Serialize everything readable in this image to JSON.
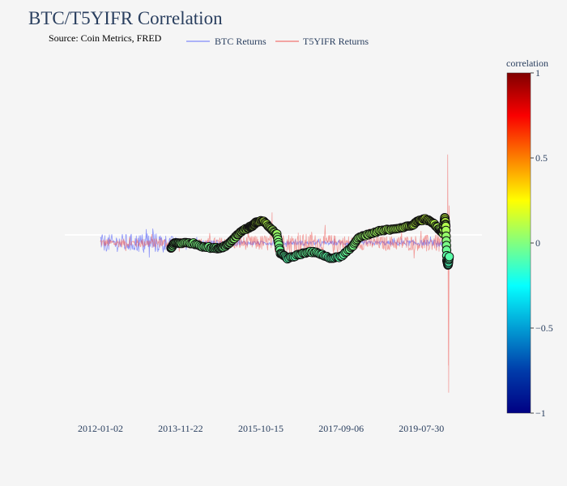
{
  "title": "BTC/T5YIFR Correlation",
  "subtitle": "Source: Coin Metrics, FRED",
  "chart_data": {
    "type": "line",
    "series": [
      {
        "name": "BTC Returns",
        "kind": "line",
        "color": "#636efa"
      },
      {
        "name": "T5YIFR Returns",
        "kind": "line",
        "color": "#ef5350"
      },
      {
        "name": "correlation",
        "kind": "scatter",
        "colorscale": "Jet"
      }
    ],
    "x_tick_labels": [
      "2012-01-02",
      "2013-11-22",
      "2015-10-15",
      "2017-09-06",
      "2019-07-30"
    ],
    "x_range": [
      "2011-03-01",
      "2021-01-01"
    ],
    "y_range": [
      -1.0,
      1.0
    ],
    "grid": false,
    "legend_placement": "top-center",
    "colorbar": {
      "title": "correlation",
      "min": -1,
      "max": 1,
      "tick_labels": [
        "1",
        "0.5",
        "0",
        "−0.5",
        "−1"
      ],
      "tick_values": [
        1,
        0.5,
        0,
        -0.5,
        -1
      ]
    },
    "btc_amplitude_envelope": [
      {
        "x": "2012-01-01",
        "amp": 0.05
      },
      {
        "x": "2013-06-01",
        "amp": 0.06
      },
      {
        "x": "2014-01-01",
        "amp": 0.02
      },
      {
        "x": "2016-01-01",
        "amp": 0.012
      },
      {
        "x": "2018-01-01",
        "amp": 0.012
      },
      {
        "x": "2020-03-01",
        "amp": 0.02
      }
    ],
    "t5yifr_amplitude_envelope": [
      {
        "x": "2012-01-01",
        "amp": 0.025
      },
      {
        "x": "2014-06-01",
        "amp": 0.03
      },
      {
        "x": "2015-06-01",
        "amp": 0.04
      },
      {
        "x": "2016-06-01",
        "amp": 0.06
      },
      {
        "x": "2018-06-01",
        "amp": 0.04
      },
      {
        "x": "2019-12-01",
        "amp": 0.05
      },
      {
        "x": "2020-03-01",
        "amp": 0.1
      }
    ],
    "t5yifr_spikes": [
      {
        "x": "2016-01-20",
        "value": 0.18
      },
      {
        "x": "2016-03-01",
        "value": 0.07
      },
      {
        "x": "2016-09-01",
        "value": 0.06
      },
      {
        "x": "2020-03-12",
        "value": 0.52
      },
      {
        "x": "2020-03-18",
        "value": -0.72
      },
      {
        "x": "2020-03-20",
        "value": -0.88
      },
      {
        "x": "2020-03-25",
        "value": 0.22
      }
    ],
    "correlation": [
      {
        "x": "2013-09-01",
        "y": -0.03
      },
      {
        "x": "2013-10-01",
        "y": 0.0
      },
      {
        "x": "2013-12-01",
        "y": 0.0
      },
      {
        "x": "2014-03-01",
        "y": 0.0
      },
      {
        "x": "2014-06-01",
        "y": -0.02
      },
      {
        "x": "2014-09-01",
        "y": -0.03
      },
      {
        "x": "2014-11-01",
        "y": -0.03
      },
      {
        "x": "2015-01-01",
        "y": -0.01
      },
      {
        "x": "2015-03-01",
        "y": 0.03
      },
      {
        "x": "2015-05-01",
        "y": 0.07
      },
      {
        "x": "2015-07-01",
        "y": 0.09
      },
      {
        "x": "2015-08-01",
        "y": 0.1
      },
      {
        "x": "2015-09-01",
        "y": 0.12
      },
      {
        "x": "2015-11-01",
        "y": 0.13
      },
      {
        "x": "2016-01-01",
        "y": 0.09
      },
      {
        "x": "2016-03-01",
        "y": 0.05
      },
      {
        "x": "2016-04-01",
        "y": -0.06
      },
      {
        "x": "2016-06-01",
        "y": -0.09
      },
      {
        "x": "2016-09-01",
        "y": -0.07
      },
      {
        "x": "2016-12-01",
        "y": -0.05
      },
      {
        "x": "2017-03-01",
        "y": -0.06
      },
      {
        "x": "2017-06-01",
        "y": -0.09
      },
      {
        "x": "2017-09-01",
        "y": -0.08
      },
      {
        "x": "2017-12-01",
        "y": -0.03
      },
      {
        "x": "2018-02-01",
        "y": 0.03
      },
      {
        "x": "2018-05-01",
        "y": 0.05
      },
      {
        "x": "2018-08-01",
        "y": 0.07
      },
      {
        "x": "2018-11-01",
        "y": 0.08
      },
      {
        "x": "2019-02-01",
        "y": 0.09
      },
      {
        "x": "2019-05-01",
        "y": 0.1
      },
      {
        "x": "2019-07-01",
        "y": 0.13
      },
      {
        "x": "2019-09-01",
        "y": 0.14
      },
      {
        "x": "2019-11-01",
        "y": 0.12
      },
      {
        "x": "2020-01-01",
        "y": 0.08
      },
      {
        "x": "2020-02-01",
        "y": 0.06
      },
      {
        "x": "2020-02-15",
        "y": 0.15
      },
      {
        "x": "2020-02-25",
        "y": 0.1
      },
      {
        "x": "2020-03-05",
        "y": -0.1
      },
      {
        "x": "2020-03-15",
        "y": -0.13
      },
      {
        "x": "2020-03-25",
        "y": -0.08
      }
    ]
  }
}
